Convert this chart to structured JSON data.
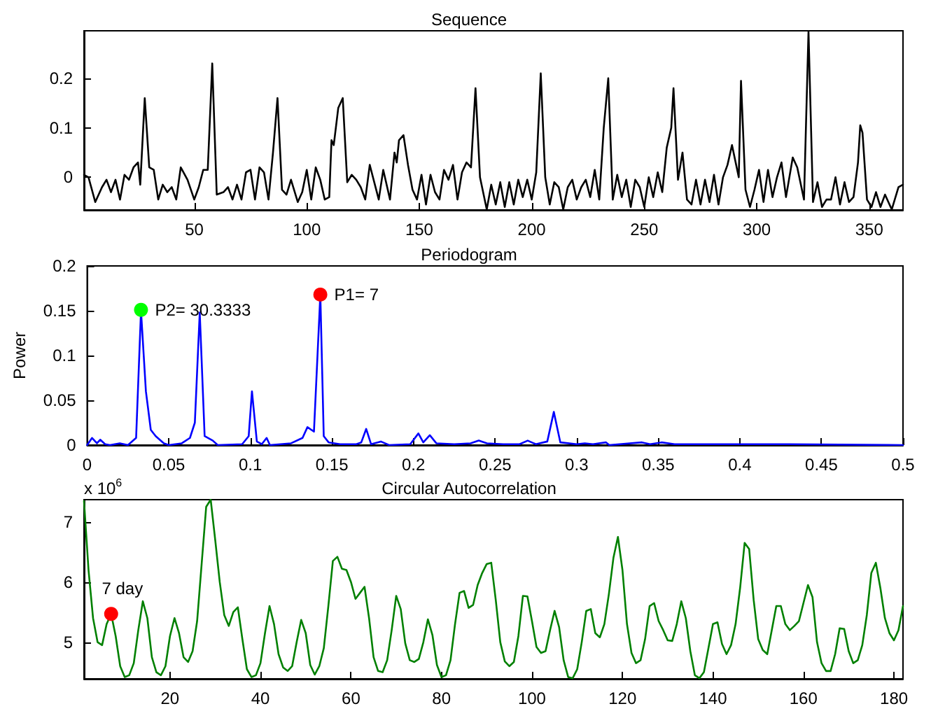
{
  "chart_data": [
    {
      "type": "line",
      "title": "Sequence",
      "xlim": [
        1,
        365
      ],
      "xticks": [
        50,
        100,
        150,
        200,
        250,
        300,
        350
      ],
      "ylim": [
        -0.066,
        0.296
      ],
      "yticks": [
        0,
        0.1,
        0.2
      ],
      "grid": false,
      "marker": "none",
      "line_style": "solid",
      "series": [
        {
          "color": "#000000",
          "x": [
            1,
            3,
            6,
            9,
            11,
            13,
            15,
            17,
            19,
            21,
            23,
            25,
            26,
            28,
            30,
            32,
            34,
            36,
            38,
            40,
            42,
            44,
            47,
            50,
            52,
            54,
            56,
            58,
            60,
            63,
            65,
            67,
            69,
            71,
            73,
            75,
            77,
            79,
            81,
            83,
            85,
            87,
            89,
            91,
            93,
            96,
            98,
            100,
            102,
            104,
            106,
            108,
            110,
            111,
            112,
            114,
            116,
            118,
            120,
            122,
            124,
            126,
            128,
            130,
            132,
            134,
            137,
            139,
            140,
            141,
            143,
            145,
            147,
            149,
            151,
            153,
            155,
            157,
            159,
            161,
            163,
            165,
            167,
            169,
            171,
            173,
            175,
            177,
            180,
            182,
            184,
            186,
            188,
            190,
            192,
            194,
            196,
            198,
            200,
            202,
            204,
            206,
            208,
            210,
            212,
            214,
            216,
            218,
            220,
            222,
            224,
            226,
            228,
            230,
            232,
            234,
            236,
            238,
            240,
            242,
            244,
            246,
            248,
            250,
            252,
            254,
            256,
            258,
            260,
            262,
            263,
            265,
            267,
            269,
            271,
            273,
            275,
            277,
            279,
            281,
            283,
            285,
            287,
            289,
            292,
            293,
            295,
            297,
            299,
            301,
            303,
            305,
            307,
            309,
            311,
            313,
            316,
            318,
            321,
            323,
            325,
            327,
            329,
            331,
            333,
            335,
            337,
            339,
            341,
            343,
            345,
            346,
            347,
            349,
            351,
            353,
            355,
            357,
            360,
            363,
            365
          ],
          "values": [
            0.005,
            0,
            -0.05,
            -0.02,
            -0.005,
            -0.03,
            -0.005,
            -0.045,
            0.005,
            -0.005,
            0.02,
            0.03,
            -0.015,
            0.16,
            0.02,
            0.015,
            -0.045,
            -0.015,
            -0.03,
            -0.02,
            -0.045,
            0.02,
            -0.005,
            -0.045,
            -0.02,
            0.015,
            0.015,
            0.23,
            -0.035,
            -0.03,
            -0.02,
            -0.045,
            -0.015,
            -0.045,
            0.01,
            0.015,
            -0.045,
            0.02,
            0.01,
            -0.045,
            0.05,
            0.16,
            -0.025,
            -0.035,
            -0.005,
            -0.05,
            -0.03,
            0.015,
            -0.045,
            0.02,
            -0.005,
            -0.045,
            -0.04,
            0.075,
            0.065,
            0.14,
            0.16,
            -0.01,
            0.005,
            -0.005,
            -0.02,
            -0.045,
            0.025,
            -0.01,
            -0.045,
            0.015,
            -0.045,
            0.05,
            0.03,
            0.075,
            0.085,
            0.025,
            -0.025,
            -0.045,
            0.005,
            -0.055,
            0.005,
            -0.03,
            -0.045,
            0.015,
            -0.005,
            0.025,
            -0.045,
            0.01,
            0.03,
            0.02,
            0.18,
            0,
            -0.065,
            -0.015,
            -0.055,
            -0.01,
            -0.06,
            -0.01,
            -0.055,
            -0.005,
            -0.04,
            -0.005,
            -0.045,
            0.01,
            0.21,
            0,
            -0.055,
            -0.01,
            -0.02,
            -0.065,
            -0.02,
            -0.005,
            -0.045,
            -0.02,
            -0.005,
            -0.04,
            0.015,
            -0.045,
            0.1,
            0.2,
            -0.045,
            0.005,
            -0.04,
            -0.005,
            -0.06,
            -0.005,
            -0.02,
            -0.06,
            0,
            -0.04,
            0.01,
            -0.03,
            0.06,
            0.1,
            0.18,
            -0.005,
            0.05,
            -0.045,
            -0.055,
            -0.005,
            -0.055,
            -0.005,
            -0.05,
            0.005,
            -0.055,
            0,
            0.025,
            0.065,
            0,
            0.195,
            -0.025,
            -0.06,
            -0.025,
            0.015,
            -0.05,
            0.015,
            -0.04,
            0,
            0.03,
            -0.04,
            0.04,
            0.02,
            -0.045,
            0.295,
            -0.05,
            -0.01,
            -0.06,
            -0.045,
            -0.045,
            0,
            -0.055,
            -0.01,
            -0.05,
            -0.04,
            0.03,
            0.105,
            0.09,
            -0.045,
            -0.06,
            -0.03,
            -0.06,
            -0.035,
            -0.065,
            -0.02,
            -0.015
          ]
        }
      ]
    },
    {
      "type": "line",
      "title": "Periodogram",
      "ylabel": "Power",
      "xlim": [
        0,
        0.5
      ],
      "xticks": [
        0,
        0.05,
        0.1,
        0.15,
        0.2,
        0.25,
        0.3,
        0.35,
        0.4,
        0.45,
        0.5
      ],
      "ylim": [
        0,
        0.2
      ],
      "yticks": [
        0,
        0.05,
        0.1,
        0.15,
        0.2
      ],
      "grid": false,
      "marker": "none",
      "line_style": "solid",
      "annotations": [
        {
          "text": "P1= 7",
          "x": 0.1429,
          "y": 0.168
        },
        {
          "text": "P2= 30.3333",
          "x": 0.033,
          "y": 0.151
        }
      ],
      "series": [
        {
          "color": "#0000ff",
          "x": [
            0,
            0.003,
            0.006,
            0.008,
            0.011,
            0.014,
            0.02,
            0.025,
            0.03,
            0.033,
            0.036,
            0.039,
            0.042,
            0.047,
            0.05,
            0.058,
            0.063,
            0.066,
            0.069,
            0.072,
            0.077,
            0.08,
            0.095,
            0.099,
            0.101,
            0.104,
            0.107,
            0.11,
            0.112,
            0.125,
            0.132,
            0.135,
            0.139,
            0.1429,
            0.145,
            0.148,
            0.155,
            0.165,
            0.168,
            0.171,
            0.174,
            0.18,
            0.185,
            0.198,
            0.203,
            0.206,
            0.21,
            0.214,
            0.225,
            0.235,
            0.24,
            0.245,
            0.255,
            0.265,
            0.27,
            0.275,
            0.282,
            0.286,
            0.29,
            0.3,
            0.305,
            0.31,
            0.318,
            0.32,
            0.34,
            0.345,
            0.352,
            0.36,
            0.38,
            0.43,
            0.5
          ],
          "values": [
            0,
            0.008,
            0.002,
            0.006,
            0.001,
            0,
            0.002,
            0,
            0.008,
            0.15,
            0.06,
            0.017,
            0.01,
            0.002,
            0,
            0.002,
            0.008,
            0.025,
            0.148,
            0.01,
            0.005,
            0,
            0.001,
            0.01,
            0.06,
            0.004,
            0.001,
            0.008,
            0,
            0.002,
            0.008,
            0.02,
            0.015,
            0.168,
            0.01,
            0.003,
            0.001,
            0.001,
            0.003,
            0.018,
            0.001,
            0.004,
            0,
            0.001,
            0.013,
            0.003,
            0.011,
            0.002,
            0.001,
            0.002,
            0.005,
            0.002,
            0.001,
            0.001,
            0.005,
            0.001,
            0.004,
            0.037,
            0.003,
            0.001,
            0.002,
            0.001,
            0.003,
            0,
            0.003,
            0.001,
            0.003,
            0.001,
            0.001,
            0.001,
            0
          ]
        },
        {
          "type": "scatter",
          "marker": "circle",
          "color": "#ff0000",
          "x": [
            0.1429
          ],
          "values": [
            0.168
          ]
        },
        {
          "type": "scatter",
          "marker": "circle",
          "color": "#00ff00",
          "x": [
            0.033
          ],
          "values": [
            0.151
          ]
        }
      ]
    },
    {
      "type": "line",
      "title": "Circular Autocorrelation",
      "xlim": [
        1,
        182
      ],
      "xticks": [
        20,
        40,
        60,
        80,
        100,
        120,
        140,
        160,
        180
      ],
      "ylim": [
        4.39,
        7.37
      ],
      "yticks": [
        5,
        6,
        7
      ],
      "grid": false,
      "marker": "none",
      "line_style": "solid",
      "annotations": [
        "x 10$^{6}$",
        {
          "text": "7 day",
          "x": 7,
          "y": 5.47
        }
      ],
      "series": [
        {
          "color": "#008000",
          "x": [
            1,
            2,
            3,
            4,
            5,
            6,
            7,
            8,
            9,
            10,
            11,
            12,
            13,
            14,
            15,
            16,
            17,
            18,
            19,
            20,
            21,
            22,
            23,
            24,
            25,
            26,
            27,
            28,
            29,
            30,
            31,
            32,
            33,
            34,
            35,
            36,
            37,
            38,
            39,
            40,
            41,
            42,
            43,
            44,
            45,
            46,
            47,
            48,
            49,
            50,
            51,
            52,
            53,
            54,
            55,
            56,
            57,
            58,
            59,
            60,
            61,
            62,
            63,
            64,
            65,
            66,
            67,
            68,
            69,
            70,
            71,
            72,
            73,
            74,
            75,
            76,
            77,
            78,
            79,
            80,
            81,
            82,
            83,
            84,
            85,
            86,
            87,
            88,
            89,
            90,
            91,
            92,
            93,
            94,
            95,
            96,
            97,
            98,
            99,
            100,
            101,
            102,
            103,
            104,
            105,
            106,
            107,
            108,
            109,
            110,
            111,
            112,
            113,
            114,
            115,
            116,
            117,
            118,
            119,
            120,
            121,
            122,
            123,
            124,
            125,
            126,
            127,
            128,
            129,
            130,
            131,
            132,
            133,
            134,
            135,
            136,
            137,
            138,
            139,
            140,
            141,
            142,
            143,
            144,
            145,
            146,
            147,
            148,
            149,
            150,
            151,
            152,
            153,
            154,
            155,
            156,
            157,
            158,
            159,
            160,
            161,
            162,
            163,
            164,
            165,
            166,
            167,
            168,
            169,
            170,
            171,
            172,
            173,
            174,
            175,
            176,
            177,
            178,
            179,
            180,
            181,
            182
          ],
          "values": [
            7.35,
            6.2,
            5.4,
            5.0,
            4.95,
            5.3,
            5.47,
            5.1,
            4.6,
            4.42,
            4.45,
            4.65,
            5.2,
            5.68,
            5.4,
            4.75,
            4.5,
            4.45,
            4.6,
            5.1,
            5.4,
            5.15,
            4.75,
            4.67,
            4.85,
            5.35,
            6.3,
            7.25,
            7.37,
            6.7,
            6.0,
            5.45,
            5.27,
            5.5,
            5.58,
            5.05,
            4.55,
            4.42,
            4.45,
            4.65,
            5.15,
            5.6,
            5.3,
            4.8,
            4.58,
            4.52,
            4.6,
            5.0,
            5.37,
            5.15,
            4.62,
            4.46,
            4.6,
            4.9,
            5.6,
            6.35,
            6.42,
            6.22,
            6.2,
            6.0,
            5.72,
            5.82,
            5.92,
            5.4,
            4.75,
            4.52,
            4.5,
            4.7,
            5.2,
            5.77,
            5.55,
            4.98,
            4.7,
            4.67,
            4.72,
            5.0,
            5.38,
            5.12,
            4.62,
            4.42,
            4.45,
            4.7,
            5.3,
            5.82,
            5.85,
            5.57,
            5.62,
            5.95,
            6.15,
            6.3,
            6.32,
            5.7,
            5.0,
            4.68,
            4.6,
            4.67,
            5.1,
            5.77,
            5.76,
            5.35,
            4.92,
            4.82,
            4.85,
            5.2,
            5.52,
            5.25,
            4.7,
            4.42,
            4.4,
            4.55,
            5.0,
            5.52,
            5.55,
            5.15,
            5.08,
            5.3,
            5.8,
            6.4,
            6.75,
            6.2,
            5.3,
            4.82,
            4.65,
            4.7,
            5.05,
            5.6,
            5.65,
            5.35,
            5.2,
            5.03,
            5.02,
            5.3,
            5.68,
            5.4,
            4.85,
            4.45,
            4.4,
            4.5,
            4.9,
            5.3,
            5.33,
            4.97,
            4.8,
            4.95,
            5.3,
            5.9,
            6.65,
            6.55,
            5.7,
            5.05,
            4.87,
            4.8,
            5.2,
            5.6,
            5.6,
            5.3,
            5.2,
            5.27,
            5.35,
            5.65,
            5.95,
            5.75,
            5.0,
            4.65,
            4.52,
            4.52,
            4.8,
            5.23,
            5.22,
            4.85,
            4.65,
            4.7,
            4.95,
            5.45,
            6.15,
            6.32,
            5.9,
            5.4,
            5.15,
            5.03,
            5.2,
            5.6
          ]
        },
        {
          "type": "scatter",
          "marker": "circle",
          "color": "#ff0000",
          "x": [
            7
          ],
          "values": [
            5.47
          ]
        }
      ]
    }
  ]
}
